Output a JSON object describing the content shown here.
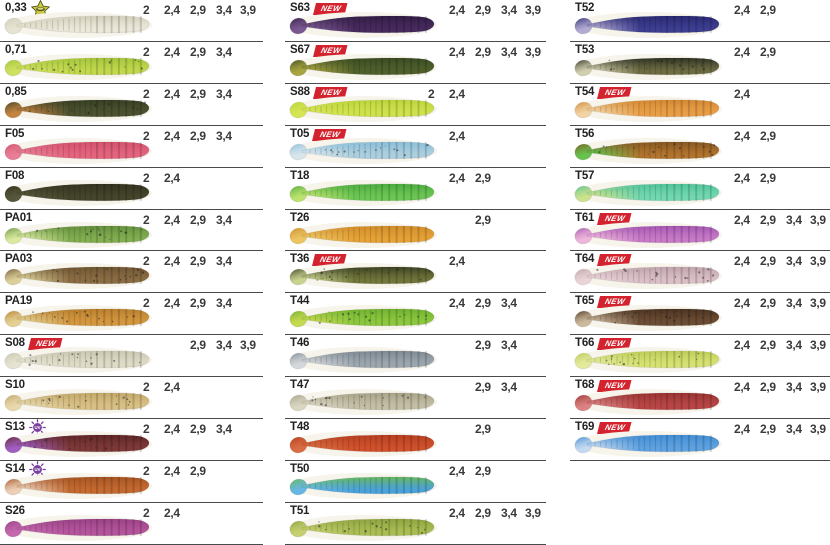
{
  "labels": {
    "new_badge": "NEW",
    "uv_icon_text": "UV"
  },
  "style": {
    "background": "#ffffff",
    "divider_color": "#4a4a4a",
    "badge_color": "#d3232f",
    "uv_icon_color": "#7b3fa0",
    "star_icon_color": "#c9ca42"
  },
  "size_slots": [
    "2",
    "2,4",
    "2,9",
    "3,4",
    "3,9"
  ],
  "columns": [
    {
      "items": [
        {
          "code": "0,33",
          "badge": "",
          "icon": "glow-star-icon",
          "sizes": [
            "2",
            "2,4",
            "2,9",
            "3,4",
            "3,9"
          ],
          "flakes": false,
          "colors": {
            "tail": "#e7e3d2",
            "body": "#ebe8da",
            "back": "#cfcbb6"
          }
        },
        {
          "code": "0,71",
          "badge": "",
          "icon": "",
          "sizes": [
            "2",
            "2,4",
            "2,9",
            "3,4",
            ""
          ],
          "flakes": true,
          "colors": {
            "tail": "#cfe060",
            "body": "#c2d84c",
            "back": "#9ec238"
          }
        },
        {
          "code": "0,85",
          "badge": "",
          "icon": "",
          "sizes": [
            "2",
            "2,4",
            "2,9",
            "3,4",
            ""
          ],
          "flakes": true,
          "colors": {
            "tail": "#c48440",
            "body": "#4c5230",
            "back": "#343c22"
          }
        },
        {
          "code": "F05",
          "badge": "",
          "icon": "",
          "sizes": [
            "2",
            "2,4",
            "2,9",
            "3,4",
            ""
          ],
          "flakes": false,
          "colors": {
            "tail": "#e87e96",
            "body": "#e4647e",
            "back": "#d04e6a"
          }
        },
        {
          "code": "F08",
          "badge": "",
          "icon": "",
          "sizes": [
            "2",
            "2,4",
            "",
            "",
            ""
          ],
          "flakes": false,
          "colors": {
            "tail": "#56563a",
            "body": "#45452c",
            "back": "#30301e"
          }
        },
        {
          "code": "PA01",
          "badge": "",
          "icon": "",
          "sizes": [
            "2",
            "2,4",
            "2,9",
            "3,4",
            ""
          ],
          "flakes": true,
          "colors": {
            "tail": "#d9e9a0",
            "body": "#82ae50",
            "back": "#5f8c3a"
          }
        },
        {
          "code": "PA03",
          "badge": "",
          "icon": "",
          "sizes": [
            "2",
            "2,4",
            "2,9",
            "3,4",
            ""
          ],
          "flakes": true,
          "colors": {
            "tail": "#dcd09a",
            "body": "#8b6d44",
            "back": "#6b5230"
          }
        },
        {
          "code": "PA19",
          "badge": "",
          "icon": "",
          "sizes": [
            "2",
            "2,4",
            "2,9",
            "3,4",
            ""
          ],
          "flakes": true,
          "colors": {
            "tail": "#e4d192",
            "body": "#d4973e",
            "back": "#b57b2c"
          }
        },
        {
          "code": "S08",
          "badge": "NEW",
          "icon": "",
          "sizes": [
            "",
            "",
            "2,9",
            "3,4",
            "3,9"
          ],
          "flakes": true,
          "colors": {
            "tail": "#e6e3d1",
            "body": "#dedbc7",
            "back": "#c6c3ac"
          }
        },
        {
          "code": "S10",
          "badge": "",
          "icon": "",
          "sizes": [
            "2",
            "2,4",
            "",
            "",
            ""
          ],
          "flakes": true,
          "colors": {
            "tail": "#e8d8ac",
            "body": "#d9c085",
            "back": "#bfa465"
          }
        },
        {
          "code": "S13",
          "badge": "",
          "icon": "uv-icon",
          "sizes": [
            "2",
            "2,4",
            "2,9",
            "3,4",
            ""
          ],
          "flakes": true,
          "colors": {
            "tail": "#a05ec0",
            "body": "#7e3838",
            "back": "#5c2424"
          }
        },
        {
          "code": "S14",
          "badge": "",
          "icon": "uv-icon",
          "sizes": [
            "2",
            "2,4",
            "2,9",
            "",
            ""
          ],
          "flakes": false,
          "colors": {
            "tail": "#eccfb6",
            "body": "#c46a30",
            "back": "#a35020"
          }
        },
        {
          "code": "S26",
          "badge": "",
          "icon": "",
          "sizes": [
            "2",
            "2,4",
            "",
            "",
            ""
          ],
          "flakes": false,
          "colors": {
            "tail": "#c467ae",
            "body": "#b4549c",
            "back": "#973f82"
          }
        }
      ]
    },
    {
      "items": [
        {
          "code": "S63",
          "badge": "NEW",
          "icon": "",
          "sizes": [
            "",
            "2,4",
            "2,9",
            "3,4",
            "3,9"
          ],
          "flakes": false,
          "colors": {
            "tail": "#7a5890",
            "body": "#472a5e",
            "back": "#2f1c42"
          }
        },
        {
          "code": "S67",
          "badge": "NEW",
          "icon": "",
          "sizes": [
            "",
            "2,4",
            "2,9",
            "3,4",
            "3,9"
          ],
          "flakes": false,
          "colors": {
            "tail": "#a8a440",
            "body": "#50602c",
            "back": "#364820"
          }
        },
        {
          "code": "S88",
          "badge": "NEW",
          "icon": "",
          "sizes": [
            "2",
            "2,4",
            "",
            "",
            ""
          ],
          "flakes": false,
          "colors": {
            "tail": "#d6e554",
            "body": "#cfe24c",
            "back": "#b8d238"
          }
        },
        {
          "code": "T05",
          "badge": "NEW",
          "icon": "",
          "sizes": [
            "",
            "2,4",
            "",
            "",
            ""
          ],
          "flakes": true,
          "colors": {
            "tail": "#d8e6ec",
            "body": "#accfdf",
            "back": "#84bcd8"
          }
        },
        {
          "code": "T18",
          "badge": "",
          "icon": "",
          "sizes": [
            "",
            "2,4",
            "2,9",
            "",
            ""
          ],
          "flakes": false,
          "colors": {
            "tail": "#bce26e",
            "body": "#6cc654",
            "back": "#46a83c"
          }
        },
        {
          "code": "T26",
          "badge": "",
          "icon": "",
          "sizes": [
            "",
            "",
            "2,9",
            "",
            ""
          ],
          "flakes": false,
          "colors": {
            "tail": "#ecc562",
            "body": "#e6a236",
            "back": "#cd8928"
          }
        },
        {
          "code": "T36",
          "badge": "NEW",
          "icon": "",
          "sizes": [
            "",
            "2,4",
            "",
            "",
            ""
          ],
          "flakes": true,
          "colors": {
            "tail": "#c9d28e",
            "body": "#71763a",
            "back": "#343a20"
          }
        },
        {
          "code": "T44",
          "badge": "",
          "icon": "",
          "sizes": [
            "",
            "2,4",
            "2,9",
            "3,4",
            ""
          ],
          "flakes": true,
          "colors": {
            "tail": "#c6da50",
            "body": "#8cc83e",
            "back": "#6cae2e"
          }
        },
        {
          "code": "T46",
          "badge": "",
          "icon": "",
          "sizes": [
            "",
            "",
            "2,9",
            "3,4",
            ""
          ],
          "flakes": false,
          "colors": {
            "tail": "#d4d8dc",
            "body": "#9ca6ae",
            "back": "#79848e"
          }
        },
        {
          "code": "T47",
          "badge": "",
          "icon": "",
          "sizes": [
            "",
            "",
            "2,9",
            "3,4",
            ""
          ],
          "flakes": true,
          "colors": {
            "tail": "#dad6c2",
            "body": "#c4bfa6",
            "back": "#a29d82"
          }
        },
        {
          "code": "T48",
          "badge": "",
          "icon": "",
          "sizes": [
            "",
            "",
            "2,9",
            "",
            ""
          ],
          "flakes": false,
          "colors": {
            "tail": "#d86c42",
            "body": "#d0512c",
            "back": "#b23c1e"
          }
        },
        {
          "code": "T50",
          "badge": "",
          "icon": "",
          "sizes": [
            "",
            "2,4",
            "2,9",
            "",
            ""
          ],
          "flakes": false,
          "colors": {
            "tail": "#66b6e6",
            "body": "#4aa2da",
            "back": "#6cbc44"
          }
        },
        {
          "code": "T51",
          "badge": "",
          "icon": "",
          "sizes": [
            "",
            "2,4",
            "2,9",
            "3,4",
            "3,9"
          ],
          "flakes": true,
          "colors": {
            "tail": "#c6d070",
            "body": "#a9bd52",
            "back": "#8aa03e"
          }
        }
      ]
    },
    {
      "items": [
        {
          "code": "T52",
          "badge": "",
          "icon": "",
          "sizes": [
            "",
            "2,4",
            "2,9",
            "",
            ""
          ],
          "flakes": false,
          "colors": {
            "tail": "#b2aad2",
            "body": "#3e3e92",
            "back": "#26266e"
          }
        },
        {
          "code": "T53",
          "badge": "",
          "icon": "",
          "sizes": [
            "",
            "2,4",
            "2,9",
            "",
            ""
          ],
          "flakes": true,
          "colors": {
            "tail": "#d2cfae",
            "body": "#6e6c42",
            "back": "#22281e"
          }
        },
        {
          "code": "T54",
          "badge": "NEW",
          "icon": "",
          "sizes": [
            "",
            "2,4",
            "",
            "",
            ""
          ],
          "flakes": false,
          "colors": {
            "tail": "#f2d4a4",
            "body": "#e99e46",
            "back": "#d08430"
          }
        },
        {
          "code": "T56",
          "badge": "",
          "icon": "",
          "sizes": [
            "",
            "2,4",
            "2,9",
            "",
            ""
          ],
          "flakes": true,
          "colors": {
            "tail": "#68c24e",
            "body": "#b2742e",
            "back": "#7e5220"
          }
        },
        {
          "code": "T57",
          "badge": "",
          "icon": "",
          "sizes": [
            "",
            "2,4",
            "2,9",
            "",
            ""
          ],
          "flakes": false,
          "colors": {
            "tail": "#cce28c",
            "body": "#72d8b2",
            "back": "#4cc096"
          }
        },
        {
          "code": "T61",
          "badge": "NEW",
          "icon": "",
          "sizes": [
            "",
            "2,4",
            "2,9",
            "3,4",
            "3,9"
          ],
          "flakes": false,
          "colors": {
            "tail": "#eeb6da",
            "body": "#c87ac8",
            "back": "#a050b0"
          }
        },
        {
          "code": "T64",
          "badge": "NEW",
          "icon": "",
          "sizes": [
            "",
            "2,4",
            "2,9",
            "3,4",
            "3,9"
          ],
          "flakes": true,
          "colors": {
            "tail": "#ead4d8",
            "body": "#dabfc6",
            "back": "#bca0a8"
          }
        },
        {
          "code": "T65",
          "badge": "NEW",
          "icon": "",
          "sizes": [
            "",
            "2,4",
            "2,9",
            "3,4",
            "3,9"
          ],
          "flakes": true,
          "colors": {
            "tail": "#ccb89c",
            "body": "#6c4c34",
            "back": "#46301e"
          }
        },
        {
          "code": "T66",
          "badge": "NEW",
          "icon": "",
          "sizes": [
            "",
            "2,4",
            "2,9",
            "3,4",
            "3,9"
          ],
          "flakes": true,
          "colors": {
            "tail": "#e4ea9c",
            "body": "#d6e272",
            "back": "#b8c854"
          }
        },
        {
          "code": "T68",
          "badge": "NEW",
          "icon": "",
          "sizes": [
            "",
            "2,4",
            "2,9",
            "3,4",
            "3,9"
          ],
          "flakes": false,
          "colors": {
            "tail": "#dc8282",
            "body": "#b94646",
            "back": "#943030"
          }
        },
        {
          "code": "T69",
          "badge": "NEW",
          "icon": "",
          "sizes": [
            "",
            "2,4",
            "2,9",
            "3,4",
            "3,9"
          ],
          "flakes": false,
          "colors": {
            "tail": "#c4daf2",
            "body": "#5ea2e2",
            "back": "#3c8ad2"
          }
        }
      ]
    }
  ]
}
